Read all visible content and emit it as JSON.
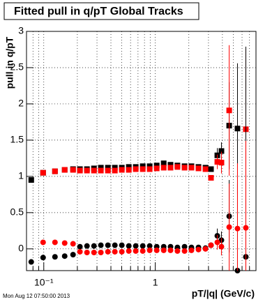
{
  "chart_data": {
    "type": "scatter",
    "title": "Fitted pull in q/pT  Global Tracks",
    "x_label": "pT/|q| (GeV/c)",
    "y_label": "pull in q/pT",
    "footer": "Mon Aug 12 07:50:00 2013",
    "x_log": true,
    "grid": true,
    "xlim": [
      0.07,
      8
    ],
    "ylim": [
      -0.3,
      3
    ],
    "xticks": [
      {
        "value": 0.1,
        "label": "10⁻¹"
      },
      1
    ],
    "xminor_ticks": [
      0.08,
      0.09,
      0.2,
      0.3,
      0.4,
      0.5,
      0.6,
      0.7,
      0.8,
      0.9,
      2,
      3,
      4,
      5,
      6,
      7
    ],
    "yticks": [
      0,
      0.5,
      1,
      1.5,
      2,
      2.5,
      3
    ],
    "x": [
      0.0772,
      0.0986,
      0.126,
      0.154,
      0.183,
      0.211,
      0.244,
      0.282,
      0.325,
      0.376,
      0.434,
      0.501,
      0.579,
      0.668,
      0.772,
      0.891,
      1.03,
      1.19,
      1.37,
      1.58,
      1.83,
      2.11,
      2.44,
      2.82,
      3.16,
      3.6,
      3.92,
      4.6,
      5.46,
      6.49
    ],
    "series": [
      {
        "color": "#000000",
        "marker": "square",
        "values": [
          0.95,
          1.05,
          1.07,
          1.09,
          1.1,
          1.1,
          1.1,
          1.11,
          1.12,
          1.12,
          1.12,
          1.12,
          1.13,
          1.13,
          1.14,
          1.14,
          1.15,
          1.18,
          1.16,
          1.15,
          1.14,
          1.14,
          1.13,
          1.12,
          1.1,
          1.29,
          1.35,
          1.7,
          1.66,
          null
        ],
        "errors": [
          null,
          null,
          null,
          null,
          null,
          null,
          null,
          null,
          null,
          null,
          null,
          null,
          null,
          null,
          null,
          null,
          null,
          null,
          null,
          null,
          null,
          null,
          null,
          null,
          null,
          0.1,
          0.12,
          0.6,
          0.9,
          null
        ]
      },
      {
        "color": "#ff0000",
        "marker": "square",
        "values": [
          null,
          1.05,
          1.07,
          1.09,
          1.09,
          1.08,
          1.08,
          1.08,
          1.08,
          1.08,
          1.08,
          1.09,
          1.09,
          1.1,
          1.1,
          1.1,
          1.11,
          1.12,
          1.12,
          1.13,
          1.12,
          1.12,
          1.11,
          1.1,
          0.98,
          1.2,
          1.19,
          1.91,
          null,
          1.65
        ],
        "errors": [
          null,
          null,
          null,
          null,
          null,
          null,
          null,
          null,
          null,
          null,
          null,
          null,
          null,
          null,
          null,
          null,
          null,
          null,
          null,
          null,
          null,
          null,
          null,
          null,
          null,
          0.1,
          0.15,
          0.9,
          null,
          1.1
        ]
      },
      {
        "color": "#000000",
        "marker": "circle",
        "values": [
          -0.18,
          -0.12,
          -0.11,
          -0.1,
          -0.08,
          0.03,
          0.04,
          0.04,
          0.05,
          0.05,
          0.05,
          0.05,
          0.04,
          0.04,
          0.04,
          0.04,
          0.03,
          0.03,
          0.03,
          0.02,
          0.03,
          0.02,
          0.02,
          0.01,
          0.05,
          0.18,
          0.12,
          0.45,
          -0.3,
          -0.11
        ],
        "errors": [
          null,
          null,
          null,
          null,
          null,
          null,
          null,
          null,
          null,
          null,
          null,
          null,
          null,
          null,
          null,
          null,
          null,
          null,
          null,
          null,
          null,
          null,
          null,
          null,
          null,
          0.1,
          0.12,
          0.5,
          1.2,
          2.9
        ]
      },
      {
        "color": "#ff0000",
        "marker": "circle",
        "values": [
          null,
          0.09,
          0.09,
          0.08,
          0.07,
          -0.04,
          -0.05,
          -0.05,
          -0.05,
          -0.04,
          -0.04,
          -0.04,
          -0.03,
          -0.03,
          -0.03,
          -0.02,
          -0.02,
          -0.02,
          -0.02,
          -0.03,
          -0.03,
          -0.02,
          -0.01,
          0,
          0.05,
          0.09,
          0.03,
          0.3,
          0.28,
          0.29
        ],
        "errors": [
          null,
          null,
          null,
          null,
          null,
          null,
          null,
          null,
          null,
          null,
          null,
          null,
          null,
          null,
          null,
          null,
          null,
          null,
          null,
          null,
          null,
          null,
          null,
          null,
          null,
          0.1,
          0.12,
          0.6,
          0.9,
          1.2
        ]
      }
    ]
  }
}
